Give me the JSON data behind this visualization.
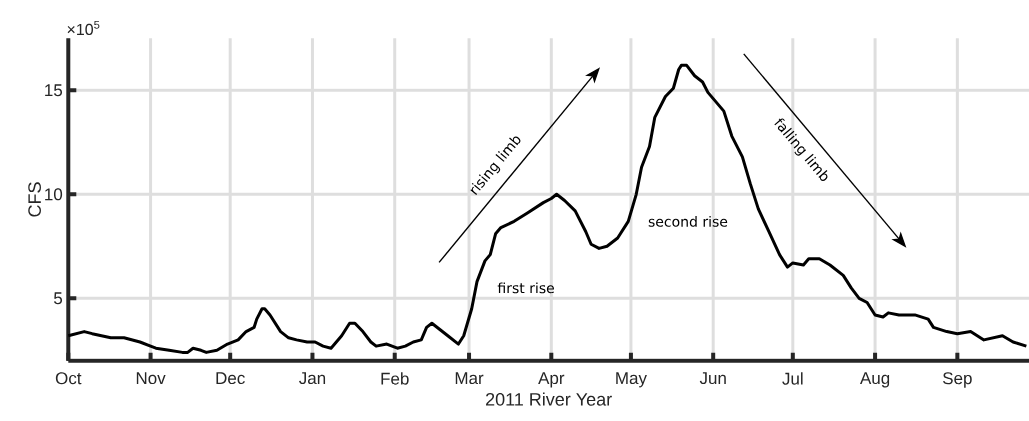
{
  "chart_data": {
    "type": "line",
    "xlabel": "2011 River Year",
    "ylabel": "CFS",
    "x": [
      "2010-10-01",
      "2010-10-07",
      "2010-10-10",
      "2010-10-17",
      "2010-10-22",
      "2010-10-28",
      "2010-11-01",
      "2010-11-03",
      "2010-11-08",
      "2010-11-13",
      "2010-11-15",
      "2010-11-17",
      "2010-11-20",
      "2010-11-22",
      "2010-11-26",
      "2010-11-30",
      "2010-12-04",
      "2010-12-07",
      "2010-12-10",
      "2010-12-11",
      "2010-12-13",
      "2010-12-14",
      "2010-12-16",
      "2010-12-20",
      "2010-12-23",
      "2010-12-26",
      "2010-12-30",
      "2011-01-02",
      "2011-01-05",
      "2011-01-08",
      "2011-01-12",
      "2011-01-15",
      "2011-01-17",
      "2011-01-20",
      "2011-01-23",
      "2011-01-25",
      "2011-01-29",
      "2011-02-02",
      "2011-02-05",
      "2011-02-08",
      "2011-02-11",
      "2011-02-13",
      "2011-02-15",
      "2011-02-18",
      "2011-02-21",
      "2011-02-23",
      "2011-02-25",
      "2011-02-27",
      "2011-03-02",
      "2011-03-04",
      "2011-03-07",
      "2011-03-09",
      "2011-03-11",
      "2011-03-13",
      "2011-03-18",
      "2011-03-23",
      "2011-03-29",
      "2011-04-01",
      "2011-04-03",
      "2011-04-06",
      "2011-04-10",
      "2011-04-14",
      "2011-04-16",
      "2011-04-19",
      "2011-04-22",
      "2011-04-26",
      "2011-04-30",
      "2011-05-03",
      "2011-05-05",
      "2011-05-08",
      "2011-05-10",
      "2011-05-14",
      "2011-05-17",
      "2011-05-19",
      "2011-05-20",
      "2011-05-22",
      "2011-05-25",
      "2011-05-28",
      "2011-05-30",
      "2011-06-05",
      "2011-06-08",
      "2011-06-12",
      "2011-06-15",
      "2011-06-18",
      "2011-06-22",
      "2011-06-26",
      "2011-06-29",
      "2011-07-01",
      "2011-07-05",
      "2011-07-07",
      "2011-07-11",
      "2011-07-15",
      "2011-07-20",
      "2011-07-23",
      "2011-07-26",
      "2011-07-29",
      "2011-08-01",
      "2011-08-04",
      "2011-08-06",
      "2011-08-10",
      "2011-08-16",
      "2011-08-21",
      "2011-08-23",
      "2011-08-28",
      "2011-09-01",
      "2011-09-06",
      "2011-09-11",
      "2011-09-18",
      "2011-09-22",
      "2011-09-27"
    ],
    "series": [
      {
        "color": "#000000",
        "values": [
          3.2,
          3.4,
          3.3,
          3.1,
          3.1,
          2.9,
          2.7,
          2.6,
          2.5,
          2.4,
          2.4,
          2.6,
          2.5,
          2.4,
          2.5,
          2.8,
          3.0,
          3.4,
          3.6,
          4.0,
          4.5,
          4.5,
          4.2,
          3.4,
          3.1,
          3.0,
          2.9,
          2.9,
          2.7,
          2.6,
          3.2,
          3.8,
          3.8,
          3.4,
          2.9,
          2.7,
          2.8,
          2.6,
          2.7,
          2.9,
          3.0,
          3.6,
          3.8,
          3.5,
          3.2,
          3.0,
          2.8,
          3.2,
          4.5,
          5.8,
          6.8,
          7.1,
          8.1,
          8.4,
          8.7,
          9.1,
          9.6,
          9.8,
          10.0,
          9.7,
          9.2,
          8.2,
          7.6,
          7.4,
          7.5,
          7.9,
          8.7,
          10.0,
          11.3,
          12.3,
          13.7,
          14.7,
          15.1,
          16.0,
          16.2,
          16.2,
          15.7,
          15.4,
          14.9,
          14.0,
          12.8,
          11.8,
          10.5,
          9.3,
          8.2,
          7.1,
          6.5,
          6.7,
          6.6,
          6.9,
          6.9,
          6.6,
          6.1,
          5.5,
          5.0,
          4.8,
          4.2,
          4.1,
          4.3,
          4.2,
          4.2,
          4.0,
          3.6,
          3.4,
          3.3,
          3.4,
          3.0,
          3.2,
          2.9,
          2.7
        ]
      }
    ],
    "xlim": [
      "2010-10-01",
      "2011-09-28"
    ],
    "ylim": [
      2,
      17.5
    ],
    "xticks": [
      {
        "value": "2010-10-01",
        "label": "Oct"
      },
      {
        "value": "2010-11-01",
        "label": "Nov"
      },
      {
        "value": "2010-12-01",
        "label": "Dec"
      },
      {
        "value": "2011-01-01",
        "label": "Jan"
      },
      {
        "value": "2011-02-01",
        "label": "Feb"
      },
      {
        "value": "2011-03-01",
        "label": "Mar"
      },
      {
        "value": "2011-04-01",
        "label": "Apr"
      },
      {
        "value": "2011-05-01",
        "label": "May"
      },
      {
        "value": "2011-06-01",
        "label": "Jun"
      },
      {
        "value": "2011-07-01",
        "label": "Jul"
      },
      {
        "value": "2011-08-01",
        "label": "Aug"
      },
      {
        "value": "2011-09-01",
        "label": "Sep"
      }
    ],
    "yticks": [
      5,
      10,
      15
    ],
    "grid": true,
    "line_style": "solid",
    "annotations": [
      "rising limb",
      "falling limb",
      "first rise",
      "second rise",
      "×10$^{5}$"
    ]
  }
}
